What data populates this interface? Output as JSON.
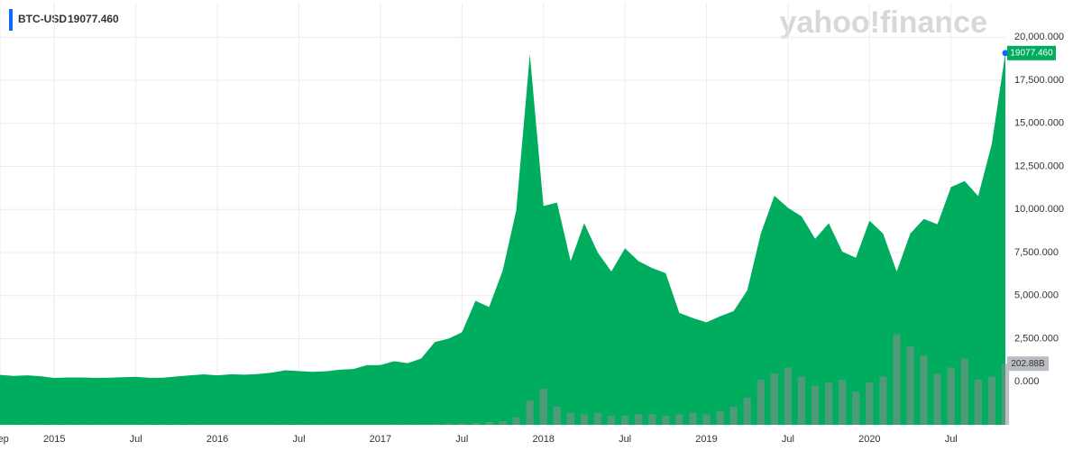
{
  "chart_data": {
    "type": "area",
    "ticker": "BTC-USD",
    "watermark": "yahoo!finance",
    "last_value": {
      "value": 19077.46,
      "label": "19077.460"
    },
    "last_volume": {
      "value": 202.88,
      "label": "202.88B"
    },
    "x": [
      "2014-09",
      "2014-10",
      "2014-11",
      "2014-12",
      "2015-01",
      "2015-02",
      "2015-03",
      "2015-04",
      "2015-05",
      "2015-06",
      "2015-07",
      "2015-08",
      "2015-09",
      "2015-10",
      "2015-11",
      "2015-12",
      "2016-01",
      "2016-02",
      "2016-03",
      "2016-04",
      "2016-05",
      "2016-06",
      "2016-07",
      "2016-08",
      "2016-09",
      "2016-10",
      "2016-11",
      "2016-12",
      "2017-01",
      "2017-02",
      "2017-03",
      "2017-04",
      "2017-05",
      "2017-06",
      "2017-07",
      "2017-08",
      "2017-09",
      "2017-10",
      "2017-11",
      "2017-12",
      "2018-01",
      "2018-02",
      "2018-03",
      "2018-04",
      "2018-05",
      "2018-06",
      "2018-07",
      "2018-08",
      "2018-09",
      "2018-10",
      "2018-11",
      "2018-12",
      "2019-01",
      "2019-02",
      "2019-03",
      "2019-04",
      "2019-05",
      "2019-06",
      "2019-07",
      "2019-08",
      "2019-09",
      "2019-10",
      "2019-11",
      "2019-12",
      "2020-01",
      "2020-02",
      "2020-03",
      "2020-04",
      "2020-05",
      "2020-06",
      "2020-07",
      "2020-08",
      "2020-09",
      "2020-10",
      "2020-11"
    ],
    "series": [
      {
        "name": "BTC-USD",
        "color": "#00ad5f",
        "values": [
          400,
          340,
          370,
          320,
          220,
          250,
          250,
          230,
          235,
          260,
          285,
          230,
          236,
          310,
          370,
          430,
          370,
          435,
          415,
          450,
          530,
          670,
          620,
          575,
          610,
          700,
          740,
          960,
          970,
          1190,
          1080,
          1350,
          2300,
          2500,
          2870,
          4700,
          4340,
          6450,
          9950,
          19000,
          10200,
          10400,
          7000,
          9200,
          7500,
          6400,
          7750,
          7000,
          6600,
          6300,
          4000,
          3700,
          3450,
          3800,
          4100,
          5300,
          8600,
          10800,
          10100,
          9600,
          8300,
          9200,
          7550,
          7200,
          9350,
          8600,
          6400,
          8600,
          9450,
          9140,
          11300,
          11650,
          10780,
          13800,
          19077.46
        ]
      },
      {
        "name": "Volume",
        "color": "#8c8c8c",
        "axis": "y2",
        "values": [
          0.3,
          0.3,
          0.3,
          0.3,
          0.3,
          0.3,
          0.3,
          0.3,
          0.3,
          0.3,
          0.3,
          0.3,
          0.3,
          0.3,
          0.4,
          0.4,
          0.5,
          0.5,
          0.5,
          0.5,
          0.5,
          0.6,
          0.6,
          0.6,
          0.6,
          0.6,
          0.7,
          0.8,
          0.8,
          1.2,
          1.5,
          1.5,
          3,
          5,
          5,
          7,
          9,
          12,
          25,
          80,
          120,
          60,
          40,
          35,
          40,
          30,
          30,
          35,
          35,
          30,
          35,
          40,
          35,
          45,
          60,
          90,
          150,
          170,
          190,
          160,
          130,
          140,
          150,
          110,
          140,
          160,
          300,
          260,
          230,
          170,
          190,
          220,
          150,
          160,
          202.88
        ]
      }
    ],
    "xlim": [
      "2014-09",
      "2020-11"
    ],
    "xticks": [
      {
        "value": "2014-09",
        "label": "Sep"
      },
      {
        "value": "2015-01",
        "label": "2015"
      },
      {
        "value": "2015-07",
        "label": "Jul"
      },
      {
        "value": "2016-01",
        "label": "2016"
      },
      {
        "value": "2016-07",
        "label": "Jul"
      },
      {
        "value": "2017-01",
        "label": "2017"
      },
      {
        "value": "2017-07",
        "label": "Jul"
      },
      {
        "value": "2018-01",
        "label": "2018"
      },
      {
        "value": "2018-07",
        "label": "Jul"
      },
      {
        "value": "2019-01",
        "label": "2019"
      },
      {
        "value": "2019-07",
        "label": "Jul"
      },
      {
        "value": "2020-01",
        "label": "2020"
      },
      {
        "value": "2020-07",
        "label": "Jul"
      }
    ],
    "ylim": [
      -2500,
      22000
    ],
    "yticks": [
      {
        "value": 0,
        "label": "0.000"
      },
      {
        "value": 2500,
        "label": "2,500.000"
      },
      {
        "value": 5000,
        "label": "5,000.000"
      },
      {
        "value": 7500,
        "label": "7,500.000"
      },
      {
        "value": 10000,
        "label": "10,000.000"
      },
      {
        "value": 12500,
        "label": "12,500.000"
      },
      {
        "value": 15000,
        "label": "15,000.000"
      },
      {
        "value": 17500,
        "label": "17,500.000"
      },
      {
        "value": 20000,
        "label": "20,000.000"
      }
    ],
    "y2lim": [
      0,
      1400
    ],
    "grid": true
  }
}
